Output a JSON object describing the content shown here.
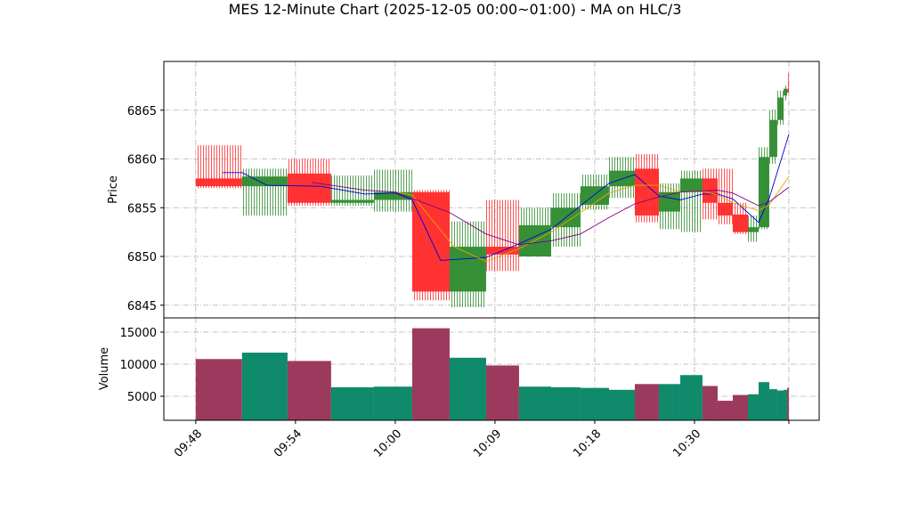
{
  "chart_data": {
    "type": "candlestick",
    "title": "MES 12-Minute Chart (2025-12-05 00:00~01:00) - MA on HLC/3",
    "ylabel": "Price",
    "y2label": "Volume",
    "xlim": [
      -0.32,
      6.25
    ],
    "xticks": [
      {
        "value": 0,
        "label": "09:48"
      },
      {
        "value": 1,
        "label": "09:54"
      },
      {
        "value": 2,
        "label": "10:00"
      },
      {
        "value": 3,
        "label": "10:09"
      },
      {
        "value": 4,
        "label": "10:18"
      },
      {
        "value": 5,
        "label": "10:30"
      },
      {
        "value": 5.946,
        "label": null
      }
    ],
    "ylim": [
      6843.7,
      6870.0
    ],
    "yticks": [
      6845,
      6850,
      6855,
      6860,
      6865
    ],
    "volume_ylim": [
      1250,
      17220
    ],
    "volume_yticks": [
      5000,
      10000,
      15000
    ],
    "grid": true,
    "up_color": "#2e8b2e",
    "down_color": "#ff2a2a",
    "volume_up_color": "#0f8a6a",
    "volume_down_color": "#9c3a5e",
    "x_start": [
      0,
      0.464,
      0.92,
      1.357,
      1.786,
      2.17,
      2.545,
      2.911,
      3.241,
      3.563,
      3.857,
      4.143,
      4.402,
      4.643,
      4.857,
      5.08,
      5.232,
      5.384,
      5.536,
      5.643,
      5.75,
      5.83,
      5.893,
      5.929
    ],
    "x_end": [
      0.464,
      0.92,
      1.357,
      1.786,
      2.17,
      2.545,
      2.911,
      3.241,
      3.563,
      3.857,
      4.143,
      4.402,
      4.643,
      4.857,
      5.08,
      5.232,
      5.384,
      5.536,
      5.643,
      5.75,
      5.83,
      5.893,
      5.929,
      5.946
    ],
    "open": [
      6858,
      6857.2,
      6858.5,
      6855.5,
      6855.8,
      6856.6,
      6846.4,
      6851,
      6850,
      6853,
      6855.3,
      6857.2,
      6859,
      6854.6,
      6856.6,
      6858,
      6855.5,
      6854.3,
      6852.5,
      6853,
      6860.2,
      6864,
      6866.5,
      6867.2
    ],
    "high": [
      6861.4,
      6859,
      6860,
      6858.3,
      6858.9,
      6856.8,
      6853.6,
      6855.8,
      6855,
      6856.5,
      6858.4,
      6860.2,
      6860.5,
      6857.5,
      6858.8,
      6859,
      6859,
      6855.5,
      6854.2,
      6861.2,
      6865,
      6867,
      6867.5,
      6868.8
    ],
    "low": [
      6857,
      6854.2,
      6855.2,
      6855.2,
      6854.6,
      6845.5,
      6844.8,
      6848.5,
      6850,
      6851,
      6854.8,
      6856,
      6853.5,
      6852.8,
      6852.5,
      6853.8,
      6853.3,
      6852.3,
      6851.5,
      6852.8,
      6859.5,
      6863.5,
      6866,
      6866.8
    ],
    "close": [
      6857.2,
      6858.2,
      6855.5,
      6855.8,
      6856.6,
      6846.4,
      6851,
      6850.2,
      6853.2,
      6855,
      6857.2,
      6858.8,
      6854.2,
      6856.6,
      6858,
      6855.5,
      6854.2,
      6852.5,
      6853,
      6860.2,
      6864,
      6866.3,
      6867.2,
      6866.8
    ],
    "volume": [
      10800,
      11800,
      10500,
      6400,
      6500,
      15600,
      11000,
      9800,
      6500,
      6400,
      6300,
      6000,
      6900,
      6900,
      8300,
      6600,
      4300,
      5200,
      5300,
      7200,
      6100,
      5900,
      6000,
      6300
    ],
    "series": [
      {
        "color": "#0000dd",
        "x": [
          0.268,
          0.464,
          0.714,
          1.25,
          1.696,
          2.0,
          2.17,
          2.455,
          2.911,
          3.241,
          3.563,
          3.857,
          4.143,
          4.402,
          4.643,
          4.857,
          5.08,
          5.232,
          5.384,
          5.643,
          5.75,
          5.946
        ],
        "values": [
          6858.6,
          6858.6,
          6857.3,
          6857.2,
          6856.4,
          6856.5,
          6855.8,
          6849.6,
          6849.9,
          6851.3,
          6852.8,
          6855.2,
          6857.5,
          6858.4,
          6856.2,
          6855.8,
          6856.4,
          6856.4,
          6855.9,
          6853.5,
          6856.0,
          6862.5
        ]
      },
      {
        "color": "#e6a800",
        "x": [
          2.0,
          2.17,
          2.589,
          2.911,
          3.241,
          3.563,
          3.857,
          4.143,
          4.402,
          4.643,
          4.857,
          5.08,
          5.232,
          5.384,
          5.643,
          5.75,
          5.946
        ],
        "values": [
          6856.6,
          6856.3,
          6851,
          6849.5,
          6850.8,
          6852.5,
          6854.5,
          6856.5,
          6857.3,
          6857.3,
          6856.6,
          6856.7,
          6856.3,
          6855.5,
          6854.7,
          6855.3,
          6858.2
        ]
      },
      {
        "color": "#800080",
        "x": [
          1.161,
          1.696,
          2.0,
          2.545,
          2.911,
          3.241,
          3.563,
          3.857,
          4.143,
          4.402,
          4.643,
          4.857,
          5.232,
          5.384,
          5.643,
          5.75,
          5.946
        ],
        "values": [
          6857.6,
          6856.8,
          6856.6,
          6854.5,
          6852.3,
          6851.2,
          6851.6,
          6852.3,
          6854.0,
          6855.4,
          6856.1,
          6856.6,
          6856.8,
          6856.5,
          6855.2,
          6855.6,
          6857.1
        ]
      }
    ]
  }
}
